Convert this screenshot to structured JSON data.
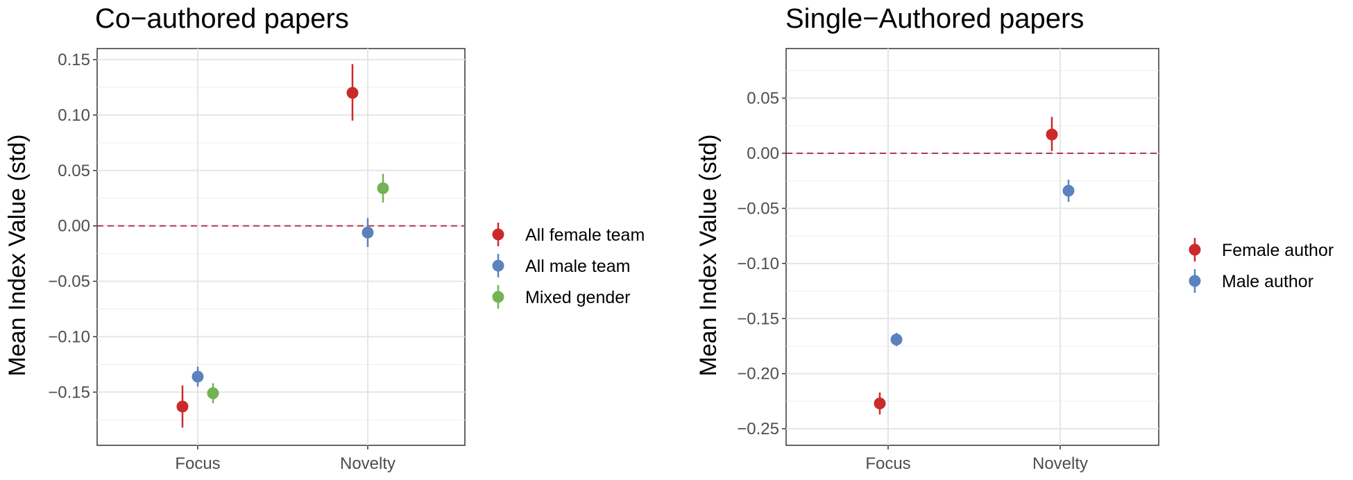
{
  "chart_data": [
    {
      "type": "scatter",
      "title": "Co−authored papers",
      "xlabel": "",
      "ylabel": "Mean Index Value (std)",
      "categories": [
        "Focus",
        "Novelty"
      ],
      "ylim": [
        -0.198,
        0.16
      ],
      "y_ticks": [
        0.15,
        0.1,
        0.05,
        0.0,
        -0.05,
        -0.1,
        -0.15
      ],
      "y_tick_labels": [
        "0.15",
        "0.10",
        "0.05",
        "0.00",
        "−0.05",
        "−0.10",
        "−0.15"
      ],
      "reference_line": {
        "y": 0.0,
        "style": "dashed",
        "color": "#b03a4e"
      },
      "grid": true,
      "legend_position": "right",
      "series": [
        {
          "name": "All female team",
          "color": "#cc2a2a",
          "values": [
            -0.163,
            0.12
          ],
          "lower": [
            -0.182,
            0.095
          ],
          "upper": [
            -0.144,
            0.146
          ]
        },
        {
          "name": "All male team",
          "color": "#5b82be",
          "values": [
            -0.136,
            -0.006
          ],
          "lower": [
            -0.145,
            -0.019
          ],
          "upper": [
            -0.127,
            0.007
          ]
        },
        {
          "name": "Mixed gender",
          "color": "#73b355",
          "values": [
            -0.151,
            0.034
          ],
          "lower": [
            -0.16,
            0.021
          ],
          "upper": [
            -0.142,
            0.047
          ]
        }
      ]
    },
    {
      "type": "scatter",
      "title": "Single−Authored papers",
      "xlabel": "",
      "ylabel": "Mean Index Value (std)",
      "categories": [
        "Focus",
        "Novelty"
      ],
      "ylim": [
        -0.265,
        0.095
      ],
      "y_ticks": [
        0.05,
        0.0,
        -0.05,
        -0.1,
        -0.15,
        -0.2,
        -0.25
      ],
      "y_tick_labels": [
        "0.05",
        "0.00",
        "−0.05",
        "−0.10",
        "−0.15",
        "−0.20",
        "−0.25"
      ],
      "reference_line": {
        "y": 0.0,
        "style": "dashed",
        "color": "#b03a4e"
      },
      "grid": true,
      "legend_position": "right",
      "series": [
        {
          "name": "Female author",
          "color": "#cc2a2a",
          "values": [
            -0.227,
            0.017
          ],
          "lower": [
            -0.237,
            0.002
          ],
          "upper": [
            -0.217,
            0.033
          ]
        },
        {
          "name": "Male author",
          "color": "#5b82be",
          "values": [
            -0.169,
            -0.034
          ],
          "lower": [
            -0.175,
            -0.044
          ],
          "upper": [
            -0.163,
            -0.024
          ]
        }
      ]
    }
  ]
}
